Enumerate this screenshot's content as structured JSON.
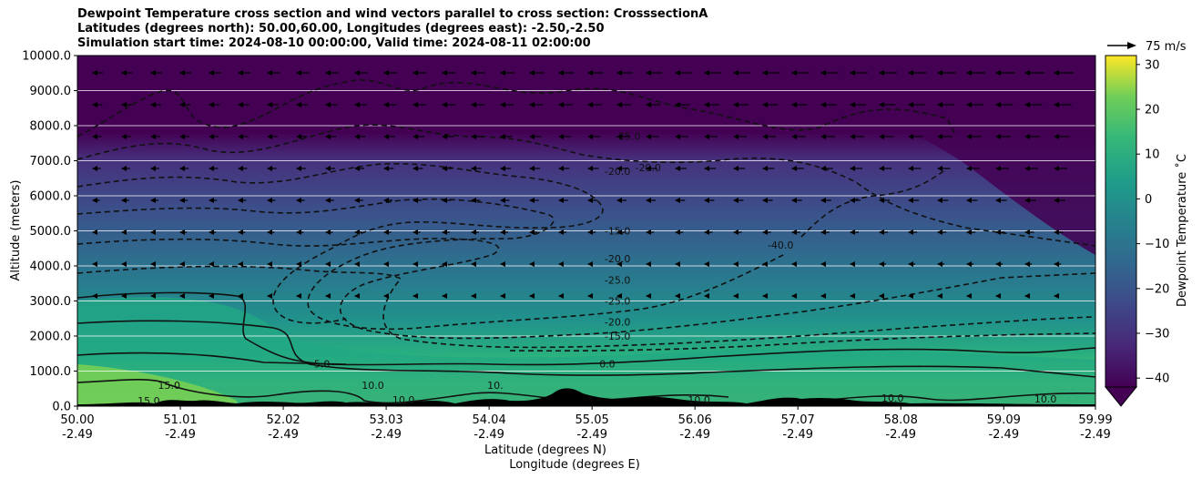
{
  "chart_data": {
    "type": "heatmap",
    "title_lines": [
      "Dewpoint Temperature cross section and wind vectors parallel to cross section: CrosssectionA",
      "Latitudes (degrees north): 50.00,60.00, Longitudes (degrees east): -2.50,-2.50",
      "Simulation start time: 2024-08-10 00:00:00, Valid time: 2024-08-11 02:00:00"
    ],
    "ylabel": "Altitude (meters)",
    "xlabel_lines": [
      "Latitude (degrees N)",
      "Longitude (degrees E)"
    ],
    "ylim": [
      0,
      10000
    ],
    "xlim": [
      50.0,
      59.99
    ],
    "y_ticks": [
      "0.0",
      "1000.0",
      "2000.0",
      "3000.0",
      "4000.0",
      "5000.0",
      "6000.0",
      "7000.0",
      "8000.0",
      "9000.0",
      "10000.0"
    ],
    "x_ticks": [
      {
        "lat": "50.00",
        "lon": "-2.49"
      },
      {
        "lat": "51.01",
        "lon": "-2.49"
      },
      {
        "lat": "52.02",
        "lon": "-2.49"
      },
      {
        "lat": "53.03",
        "lon": "-2.49"
      },
      {
        "lat": "54.04",
        "lon": "-2.49"
      },
      {
        "lat": "55.05",
        "lon": "-2.49"
      },
      {
        "lat": "56.06",
        "lon": "-2.49"
      },
      {
        "lat": "57.07",
        "lon": "-2.49"
      },
      {
        "lat": "58.08",
        "lon": "-2.49"
      },
      {
        "lat": "59.09",
        "lon": "-2.49"
      },
      {
        "lat": "59.99",
        "lon": "-2.49"
      }
    ],
    "colorbar": {
      "label": "Dewpoint Temperature $^\\circ$C",
      "label_display": "Dewpoint Temperature ˚C",
      "range": [
        -42,
        32
      ],
      "ticks": [
        "30",
        "20",
        "10",
        "0",
        "−10",
        "−20",
        "−30",
        "−40"
      ],
      "tick_values": [
        30,
        20,
        10,
        0,
        -10,
        -20,
        -30,
        -40
      ],
      "colormap": "viridis",
      "extend": "min"
    },
    "quiver_key": {
      "label": "75 m/s",
      "value": 75
    },
    "grid": "horizontal",
    "contour_labels": [
      {
        "text": "-25.0",
        "lat": 55.4,
        "alt": 7600
      },
      {
        "text": "-20.0",
        "lat": 55.3,
        "alt": 6600
      },
      {
        "text": "-20.0",
        "lat": 55.6,
        "alt": 6700
      },
      {
        "text": "-15.0",
        "lat": 55.3,
        "alt": 4900
      },
      {
        "text": "-20.0",
        "lat": 55.3,
        "alt": 4100
      },
      {
        "text": "-25.0",
        "lat": 55.3,
        "alt": 3500
      },
      {
        "text": "-25.0",
        "lat": 55.3,
        "alt": 2900
      },
      {
        "text": "-20.0",
        "lat": 55.3,
        "alt": 2300
      },
      {
        "text": "-15.0",
        "lat": 55.3,
        "alt": 1900
      },
      {
        "text": "0.0",
        "lat": 55.2,
        "alt": 1100
      },
      {
        "text": "-40.0",
        "lat": 56.9,
        "alt": 4500
      },
      {
        "text": "5.0",
        "lat": 52.4,
        "alt": 1100
      },
      {
        "text": "10.0",
        "lat": 52.9,
        "alt": 500
      },
      {
        "text": "10.0",
        "lat": 53.2,
        "alt": 80
      },
      {
        "text": "10.",
        "lat": 54.1,
        "alt": 500
      },
      {
        "text": "10.0",
        "lat": 56.1,
        "alt": 80
      },
      {
        "text": "10.0",
        "lat": 58.0,
        "alt": 130
      },
      {
        "text": "10.0",
        "lat": 59.5,
        "alt": 100
      },
      {
        "text": "15.0",
        "lat": 50.9,
        "alt": 500
      },
      {
        "text": "15.0",
        "lat": 50.7,
        "alt": 50
      }
    ]
  }
}
